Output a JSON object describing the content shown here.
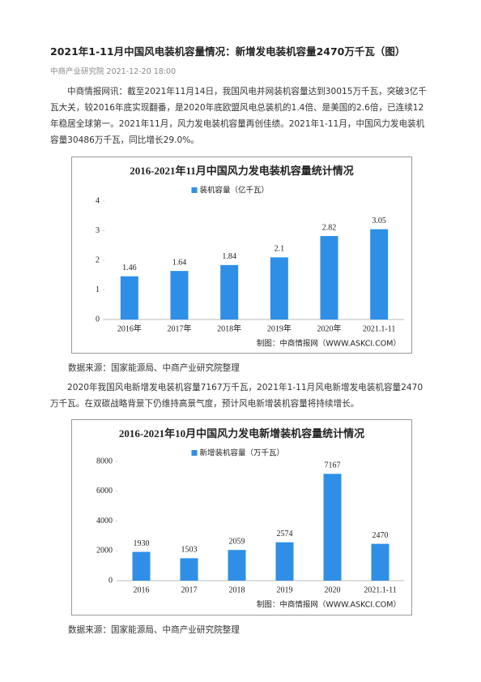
{
  "header": {
    "title": "2021年1-11月中国风电装机容量情况：新增发电装机容量2470万千瓦（图）",
    "meta": "中商产业研究院 2021-12-20 18:00"
  },
  "body": {
    "paragraphs": [
      "中商情报网讯：截至2021年11月14日，我国风电并网装机容量达到30015万千瓦，突破3亿千瓦大关，较2016年底实现翻番，是2020年底欧盟风电总装机的1.4倍、是美国的2.6倍，已连续12年稳居全球第一。2021年11月，风力发电装机容量再创佳绩。2021年1-11月，中国风力发电装机容量30486万千瓦，同比增长29.0%。",
      "2020年我国风电新增发电装机容量7167万千瓦，2021年1-11月风电新增发电装机容量2470万千瓦。在双碳战略背景下仍维持高景气度，预计风电新增装机容量将持续增长。"
    ],
    "sources": [
      "数据来源：国家能源局、中商产业研究院整理",
      "数据来源：国家能源局、中商产业研究院整理"
    ]
  },
  "chart_data": [
    {
      "type": "bar",
      "title": "2016-2021年11月中国风力发电装机容量统计情况",
      "note": "制图：中商情报网（WWW.ASKCI.COM）",
      "categories": [
        "2016年",
        "2017年",
        "2018年",
        "2019年",
        "2020年",
        "2021.1-11"
      ],
      "series": [
        {
          "name": "装机容量（亿千瓦）",
          "color": "#2f8fe6",
          "values": [
            1.46,
            1.64,
            1.84,
            2.1,
            2.82,
            3.05
          ]
        }
      ],
      "ylim": [
        0,
        4
      ],
      "yticks": [
        0,
        1,
        2,
        3,
        4
      ]
    },
    {
      "type": "bar",
      "title": "2016-2021年10月中国风力发电新增装机容量统计情况",
      "note": "制图：中商情报网（WWW.ASKCI.COM）",
      "categories": [
        "2016",
        "2017",
        "2018",
        "2019",
        "2020",
        "2021.1-11"
      ],
      "series": [
        {
          "name": "新增装机容量（万千瓦）",
          "color": "#2f8fe6",
          "values": [
            1930,
            1503,
            2059,
            2574,
            7167,
            2470
          ]
        }
      ],
      "ylim": [
        0,
        8000
      ],
      "yticks": [
        0,
        2000,
        4000,
        6000,
        8000
      ]
    }
  ]
}
